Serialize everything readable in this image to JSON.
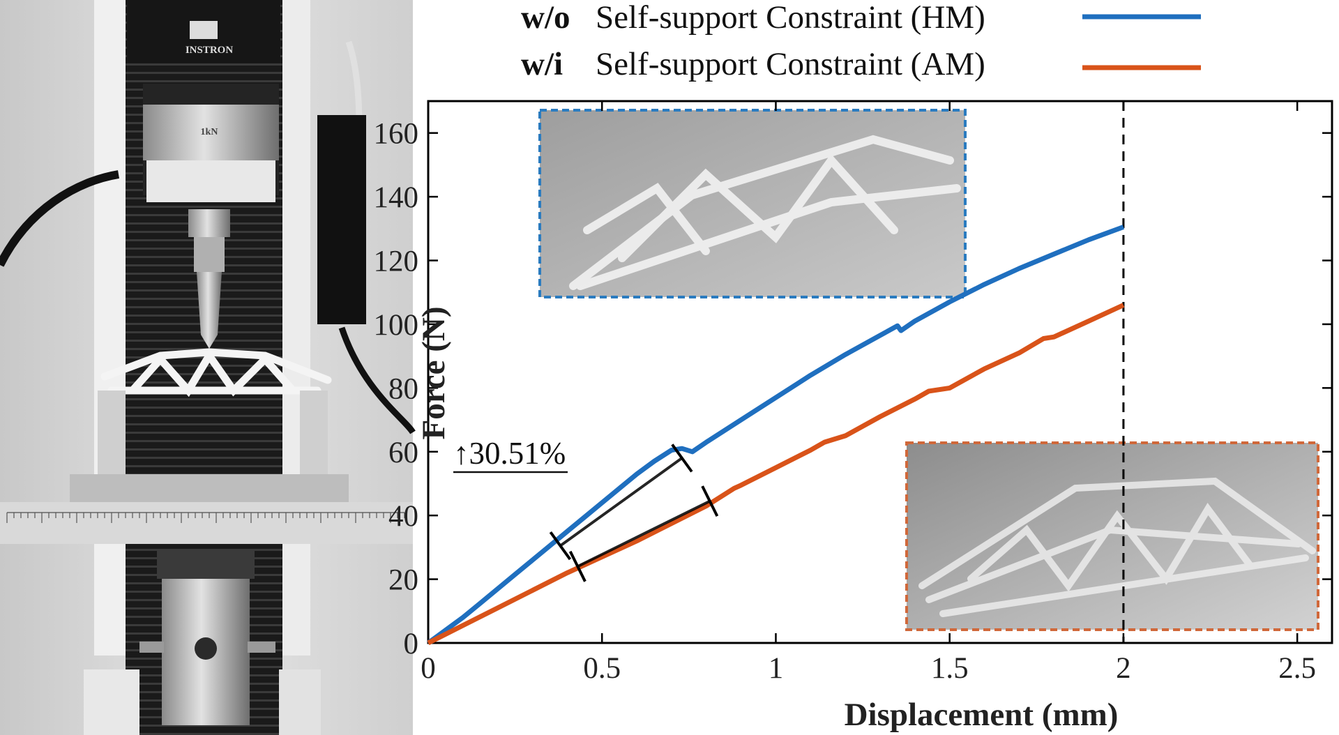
{
  "colors": {
    "hm": "#1f6fbf",
    "am": "#d95319",
    "axis": "#000000",
    "hm_frame": "#2a7bbf",
    "am_frame": "#d0683a"
  },
  "photo": {
    "instrument_brand": "INSTRON",
    "load_cell_label": "1kN"
  },
  "chart_data": {
    "type": "line",
    "xlabel": "Displacement (mm)",
    "ylabel": "Force (N)",
    "xlim": [
      0,
      2.6
    ],
    "ylim": [
      0,
      170
    ],
    "xticks": [
      0,
      0.5,
      1,
      1.5,
      2,
      2.5
    ],
    "xtick_labels": [
      "0",
      "0.5",
      "1",
      "1.5",
      "2",
      "2.5"
    ],
    "yticks": [
      0,
      20,
      40,
      60,
      80,
      100,
      120,
      140,
      160
    ],
    "ytick_labels": [
      "0",
      "20",
      "40",
      "60",
      "80",
      "100",
      "120",
      "140",
      "160"
    ],
    "grid": false,
    "legend_position": "top",
    "vertical_marker_x": 2,
    "series": [
      {
        "prefix": "w/o",
        "label": "Self-support Constraint (HM)",
        "color_key": "hm",
        "x": [
          0,
          0.05,
          0.1,
          0.15,
          0.2,
          0.25,
          0.3,
          0.35,
          0.4,
          0.45,
          0.5,
          0.55,
          0.6,
          0.65,
          0.7,
          0.73,
          0.76,
          0.8,
          0.9,
          1.0,
          1.1,
          1.2,
          1.3,
          1.35,
          1.36,
          1.4,
          1.5,
          1.6,
          1.7,
          1.8,
          1.9,
          2.0
        ],
        "y": [
          0,
          4,
          8,
          12.5,
          17,
          21.5,
          26,
          30.5,
          35,
          39.5,
          44,
          48.5,
          53,
          57,
          60.5,
          61,
          60,
          63,
          70,
          77,
          84,
          90.5,
          96.5,
          99.5,
          98,
          101,
          107,
          112.5,
          117.5,
          122,
          126.5,
          130.5
        ]
      },
      {
        "prefix": "w/i",
        "label": "Self-support Constraint (AM)",
        "color_key": "am",
        "x": [
          0,
          0.1,
          0.2,
          0.3,
          0.4,
          0.5,
          0.6,
          0.7,
          0.8,
          0.88,
          0.9,
          1.0,
          1.1,
          1.14,
          1.2,
          1.3,
          1.4,
          1.44,
          1.5,
          1.6,
          1.7,
          1.77,
          1.8,
          1.9,
          2.0
        ],
        "y": [
          0,
          5.5,
          11,
          16.5,
          22,
          27,
          32,
          37.5,
          43,
          48.5,
          49.5,
          55,
          60.5,
          63,
          65,
          71,
          76.5,
          79,
          80,
          86,
          91,
          95.5,
          96,
          101,
          106
        ]
      }
    ],
    "annotation": "↑30.51%",
    "segment_marks": {
      "hm": [
        [
          0.38,
          30.5
        ],
        [
          0.73,
          58
        ]
      ],
      "am": [
        [
          0.43,
          24
        ],
        [
          0.81,
          44.5
        ]
      ]
    }
  }
}
